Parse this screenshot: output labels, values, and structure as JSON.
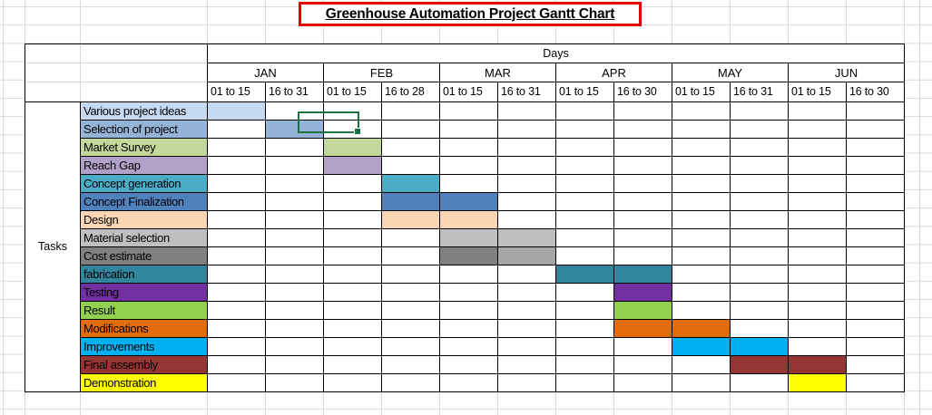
{
  "header": {
    "title": "Greenhouse Automation Project Gantt Chart",
    "title_border_color": "#E50000"
  },
  "table": {
    "days_label": "Days",
    "tasks_label": "Tasks",
    "months": [
      {
        "label": "JAN",
        "ranges": [
          "01 to 15",
          "16 to 31"
        ]
      },
      {
        "label": "FEB",
        "ranges": [
          "01 to 15",
          "16 to 28"
        ]
      },
      {
        "label": "MAR",
        "ranges": [
          "01 to 15",
          "16 to 31"
        ]
      },
      {
        "label": "APR",
        "ranges": [
          "01 to 15",
          "16 to 30"
        ]
      },
      {
        "label": "MAY",
        "ranges": [
          "01 to 15",
          "16 to 31"
        ]
      },
      {
        "label": "JUN",
        "ranges": [
          "01 to 15",
          "16 to 30"
        ]
      }
    ]
  },
  "chart_data": {
    "type": "gantt",
    "title": "Greenhouse Automation Project Gantt Chart",
    "columns": [
      "JAN 01 to 15",
      "JAN 16 to 31",
      "FEB 01 to 15",
      "FEB 16 to 28",
      "MAR 01 to 15",
      "MAR 16 to 31",
      "APR 01 to 15",
      "APR 16 to 30",
      "MAY 01 to 15",
      "MAY 16 to 31",
      "JUN 01 to 15",
      "JUN 16 to 30"
    ],
    "tasks": [
      {
        "name": "Various project ideas",
        "color": "#C5D9F1",
        "bars": [
          {
            "start": 0,
            "span": 1
          }
        ]
      },
      {
        "name": "Selection of project",
        "color": "#95B3D7",
        "bars": [
          {
            "start": 1,
            "span": 1
          }
        ]
      },
      {
        "name": "Market Survey",
        "color": "#C4D79B",
        "bars": [
          {
            "start": 2,
            "span": 1
          }
        ]
      },
      {
        "name": "Reach Gap",
        "color": "#B1A0C7",
        "bars": [
          {
            "start": 2,
            "span": 1
          }
        ]
      },
      {
        "name": "Concept generation",
        "color": "#4BACC6",
        "bars": [
          {
            "start": 3,
            "span": 1
          }
        ]
      },
      {
        "name": "Concept Finalization",
        "color": "#4F81BD",
        "bars": [
          {
            "start": 3,
            "span": 2
          }
        ]
      },
      {
        "name": "Design",
        "color": "#FCD5B4",
        "bars": [
          {
            "start": 3,
            "span": 2
          }
        ]
      },
      {
        "name": "Material selection",
        "color": "#BFBFBF",
        "bars": [
          {
            "start": 4,
            "span": 2
          }
        ]
      },
      {
        "name": "Cost estimate",
        "color": "#808080",
        "bars": [
          {
            "start": 4,
            "span": 1
          },
          {
            "start": 5,
            "span": 1,
            "color": "#A6A6A6"
          }
        ]
      },
      {
        "name": "fabrication",
        "color": "#31859C",
        "bars": [
          {
            "start": 6,
            "span": 2
          }
        ]
      },
      {
        "name": "Testing",
        "color": "#7030A0",
        "bars": [
          {
            "start": 7,
            "span": 1
          }
        ]
      },
      {
        "name": "Result",
        "color": "#92D050",
        "bars": [
          {
            "start": 7,
            "span": 1
          }
        ]
      },
      {
        "name": "Modifications",
        "color": "#E26B0A",
        "bars": [
          {
            "start": 7,
            "span": 2
          }
        ]
      },
      {
        "name": "Improvements",
        "color": "#00B0F0",
        "bars": [
          {
            "start": 8,
            "span": 2
          }
        ]
      },
      {
        "name": "Final assembly",
        "color": "#963634",
        "bars": [
          {
            "start": 9,
            "span": 2
          }
        ]
      },
      {
        "name": "Demonstration",
        "color": "#FFFF00",
        "bars": [
          {
            "start": 10,
            "span": 1
          }
        ]
      }
    ],
    "selection": {
      "task": "Reach Gap",
      "column": "FEB 01 to 15",
      "border_color": "#1E7145"
    }
  }
}
